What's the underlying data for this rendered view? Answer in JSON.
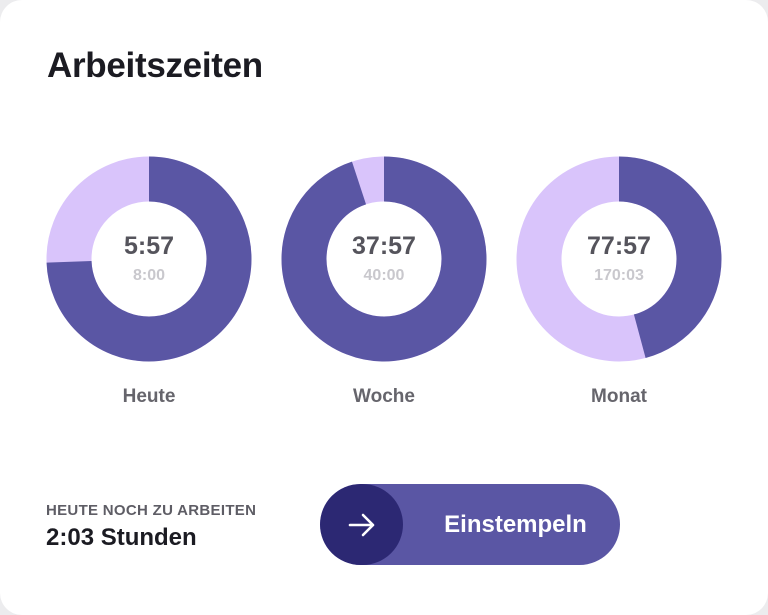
{
  "title": "Arbeitszeiten",
  "colors": {
    "worked": "#5a56a4",
    "remaining": "#d9c4fb",
    "button": "#5a56a4",
    "button_knob": "#2c2873"
  },
  "rings": [
    {
      "label": "Heute",
      "worked": "5:57",
      "target": "8:00",
      "progress": 0.744
    },
    {
      "label": "Woche",
      "worked": "37:57",
      "target": "40:00",
      "progress": 0.949
    },
    {
      "label": "Monat",
      "worked": "77:57",
      "target": "170:03",
      "progress": 0.458
    }
  ],
  "remaining": {
    "label": "HEUTE NOCH ZU ARBEITEN",
    "value": "2:03 Stunden"
  },
  "button": {
    "label": "Einstempeln",
    "icon": "arrow-right-icon"
  }
}
